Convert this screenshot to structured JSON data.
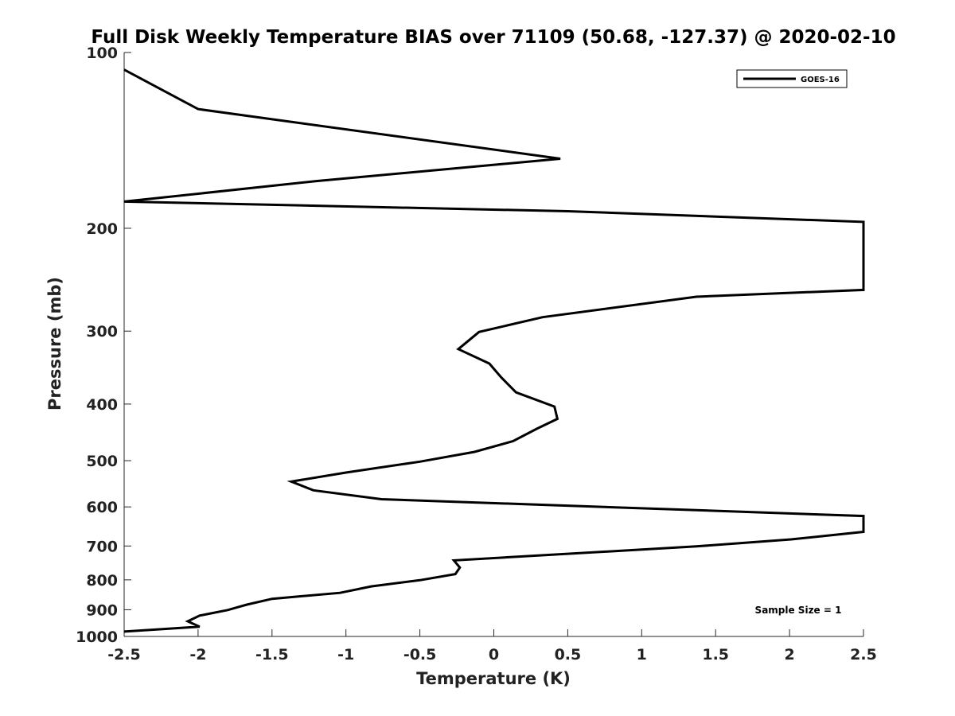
{
  "chart_data": {
    "type": "line",
    "title": "Full Disk Weekly Temperature BIAS over 71109 (50.68, -127.37) @ 2020-02-10",
    "xlabel": "Temperature (K)",
    "ylabel": "Pressure (mb)",
    "xlim": [
      -2.5,
      2.5
    ],
    "ylim": [
      1000,
      100
    ],
    "yscale": "log",
    "x_ticks": [
      -2.5,
      -2,
      -1.5,
      -1,
      -0.5,
      0,
      0.5,
      1,
      1.5,
      2,
      2.5
    ],
    "x_tick_labels": [
      "-2.5",
      "-2",
      "-1.5",
      "-1",
      "-0.5",
      "0",
      "0.5",
      "1",
      "1.5",
      "2",
      "2.5"
    ],
    "y_ticks": [
      100,
      200,
      300,
      400,
      500,
      600,
      700,
      800,
      900,
      1000
    ],
    "y_tick_labels": [
      "100",
      "200",
      "300",
      "400",
      "500",
      "600",
      "700",
      "800",
      "900",
      "1000"
    ],
    "grid": false,
    "legend_position": "top-right",
    "series": [
      {
        "name": "GOES-16",
        "color": "#000000",
        "points": [
          {
            "x": -2.5,
            "y": 107
          },
          {
            "x": -2.0,
            "y": 125
          },
          {
            "x": 0.45,
            "y": 152
          },
          {
            "x": -1.2,
            "y": 166
          },
          {
            "x": -2.5,
            "y": 180
          },
          {
            "x": 0.5,
            "y": 187
          },
          {
            "x": 2.5,
            "y": 195
          },
          {
            "x": 2.5,
            "y": 255
          },
          {
            "x": 1.37,
            "y": 262
          },
          {
            "x": 0.33,
            "y": 284
          },
          {
            "x": -0.1,
            "y": 301
          },
          {
            "x": -0.24,
            "y": 322
          },
          {
            "x": -0.03,
            "y": 341
          },
          {
            "x": 0.05,
            "y": 360
          },
          {
            "x": 0.15,
            "y": 382
          },
          {
            "x": 0.41,
            "y": 404
          },
          {
            "x": 0.43,
            "y": 424
          },
          {
            "x": 0.29,
            "y": 441
          },
          {
            "x": 0.13,
            "y": 463
          },
          {
            "x": -0.13,
            "y": 483
          },
          {
            "x": -0.5,
            "y": 502
          },
          {
            "x": -1.0,
            "y": 524
          },
          {
            "x": -1.37,
            "y": 543
          },
          {
            "x": -1.22,
            "y": 562
          },
          {
            "x": -0.76,
            "y": 582
          },
          {
            "x": 2.5,
            "y": 622
          },
          {
            "x": 2.5,
            "y": 662
          },
          {
            "x": 2.01,
            "y": 682
          },
          {
            "x": 1.37,
            "y": 701
          },
          {
            "x": -0.27,
            "y": 741
          },
          {
            "x": -0.23,
            "y": 762
          },
          {
            "x": -0.26,
            "y": 782
          },
          {
            "x": -0.5,
            "y": 801
          },
          {
            "x": -0.83,
            "y": 821
          },
          {
            "x": -1.04,
            "y": 842
          },
          {
            "x": -1.5,
            "y": 862
          },
          {
            "x": -1.67,
            "y": 882
          },
          {
            "x": -1.8,
            "y": 901
          },
          {
            "x": -1.99,
            "y": 921
          },
          {
            "x": -2.07,
            "y": 942
          },
          {
            "x": -1.99,
            "y": 962
          },
          {
            "x": -2.5,
            "y": 981
          }
        ]
      }
    ],
    "annotation": "Sample Size = 1"
  }
}
